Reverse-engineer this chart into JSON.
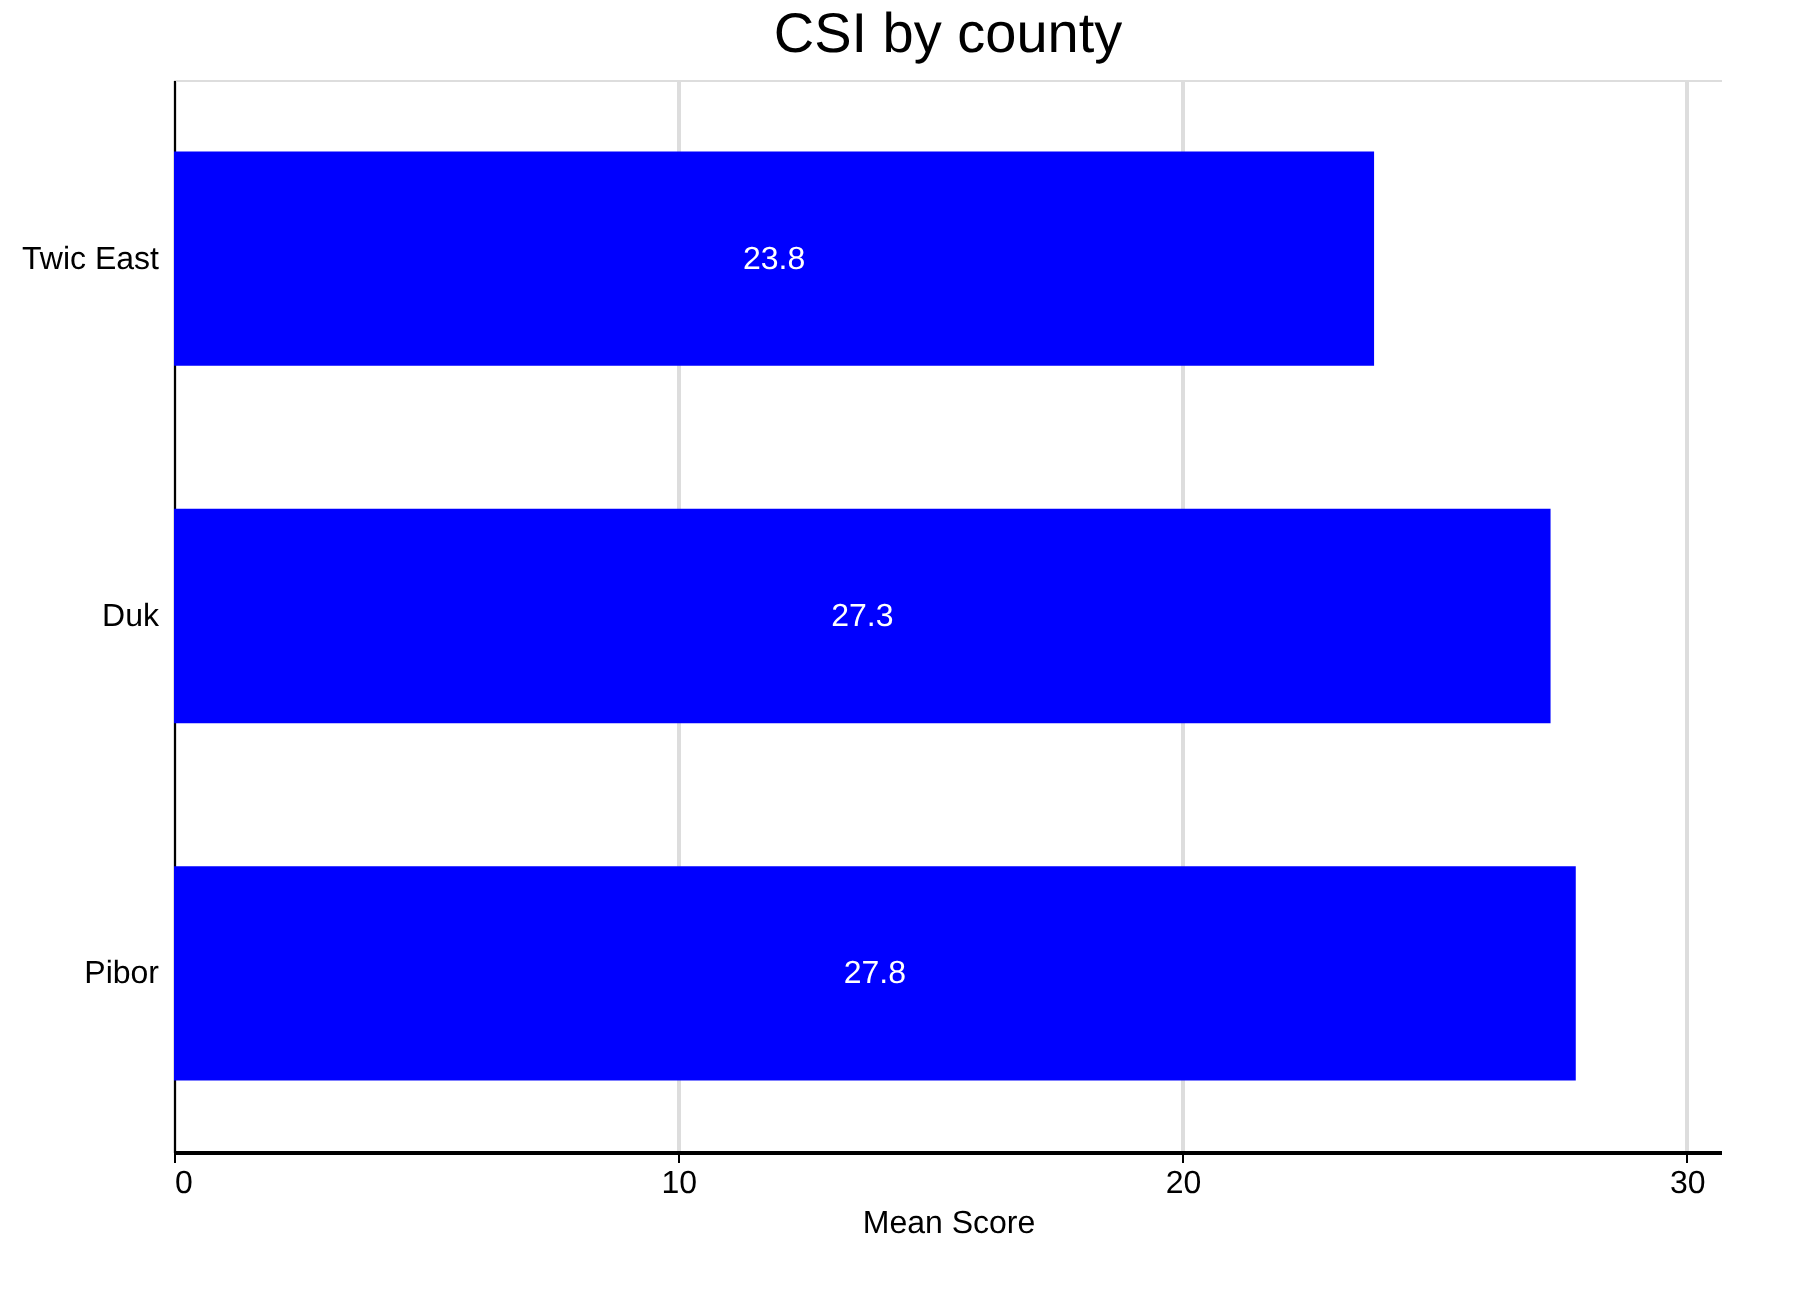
{
  "chart_data": {
    "type": "bar",
    "orientation": "horizontal",
    "title": "CSI by county",
    "xlabel": "Mean Score",
    "categories": [
      "Twic East",
      "Duk",
      "Pibor"
    ],
    "values": [
      23.8,
      27.3,
      27.8
    ],
    "color": "#0000ff",
    "xlim": [
      0,
      30.7
    ],
    "xticks": [
      0,
      10,
      20,
      30
    ],
    "grid": "x",
    "data_labels": true
  }
}
